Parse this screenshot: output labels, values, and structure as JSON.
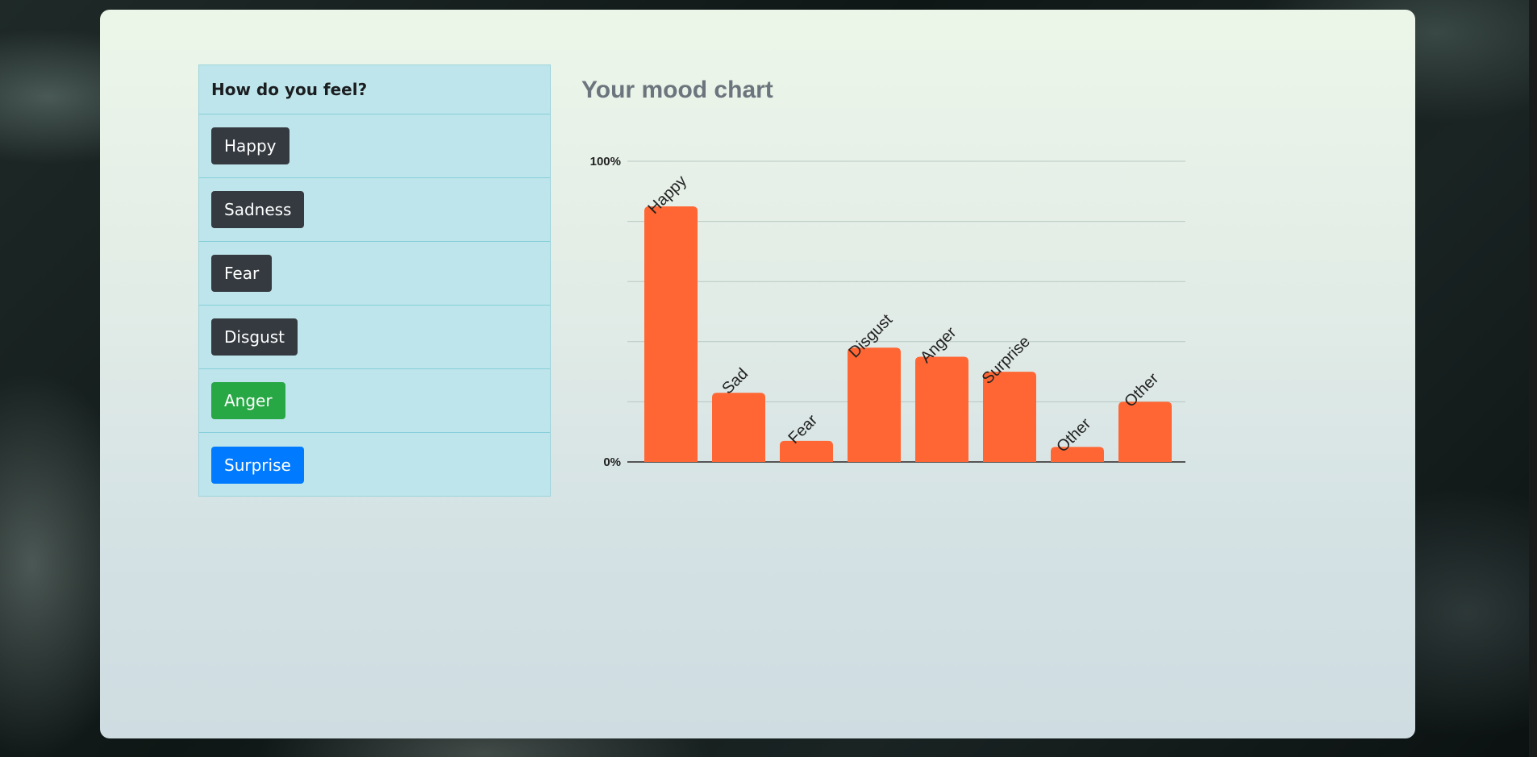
{
  "panel": {
    "title": "How do you feel?",
    "buttons": [
      {
        "label": "Happy",
        "style": "dark"
      },
      {
        "label": "Sadness",
        "style": "dark"
      },
      {
        "label": "Fear",
        "style": "dark"
      },
      {
        "label": "Disgust",
        "style": "dark"
      },
      {
        "label": "Anger",
        "style": "success"
      },
      {
        "label": "Surprise",
        "style": "primary"
      }
    ]
  },
  "chart_title": "Your mood chart",
  "colors": {
    "bar": "#ff6633",
    "grid": "#b8c7c4",
    "axis": "#555555"
  },
  "chart_data": {
    "type": "bar",
    "categories": [
      "Happy",
      "Sad",
      "Fear",
      "Disgust",
      "Anger",
      "Surprise",
      "Other",
      "Other"
    ],
    "values": [
      85,
      23,
      7,
      38,
      35,
      30,
      5,
      20
    ],
    "ylim": [
      0,
      100
    ],
    "yticks": [
      "0%",
      "100%"
    ],
    "grid": true
  }
}
